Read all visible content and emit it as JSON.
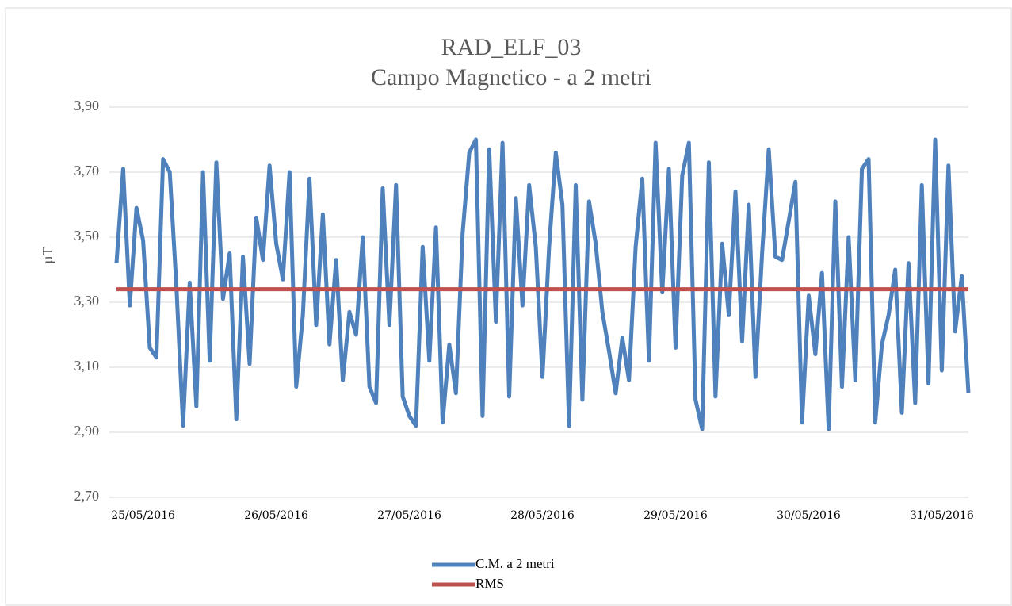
{
  "chart_data": {
    "type": "line",
    "title": "RAD_ELF_03",
    "subtitle": "Campo Magnetico - a 2 metri",
    "y_label": "µT",
    "categories": [
      null,
      null,
      null,
      null,
      "25/05/2016",
      null,
      null,
      null,
      null,
      null,
      null,
      null,
      null,
      null,
      null,
      null,
      null,
      null,
      null,
      null,
      null,
      null,
      null,
      null,
      "26/05/2016",
      null,
      null,
      null,
      null,
      null,
      null,
      null,
      null,
      null,
      null,
      null,
      null,
      null,
      null,
      null,
      null,
      null,
      null,
      null,
      "27/05/2016",
      null,
      null,
      null,
      null,
      null,
      null,
      null,
      null,
      null,
      null,
      null,
      null,
      null,
      null,
      null,
      null,
      null,
      null,
      null,
      "28/05/2016",
      null,
      null,
      null,
      null,
      null,
      null,
      null,
      null,
      null,
      null,
      null,
      null,
      null,
      null,
      null,
      null,
      null,
      null,
      null,
      "29/05/2016",
      null,
      null,
      null,
      null,
      null,
      null,
      null,
      null,
      null,
      null,
      null,
      null,
      null,
      null,
      null,
      null,
      null,
      null,
      null,
      "30/05/2016",
      null,
      null,
      null,
      null,
      null,
      null,
      null,
      null,
      null,
      null,
      null,
      null,
      null,
      null,
      null,
      null,
      null,
      null,
      null,
      "31/05/2016",
      null,
      null,
      null,
      null
    ],
    "series": [
      {
        "name": "C.M. a 2 metri",
        "color": "#4f81bd",
        "values": [
          3.42,
          3.71,
          3.29,
          3.59,
          3.49,
          3.16,
          3.13,
          3.74,
          3.7,
          3.35,
          2.92,
          3.36,
          2.98,
          3.7,
          3.12,
          3.73,
          3.31,
          3.45,
          2.94,
          3.44,
          3.11,
          3.56,
          3.43,
          3.72,
          3.48,
          3.37,
          3.7,
          3.04,
          3.26,
          3.68,
          3.23,
          3.57,
          3.17,
          3.43,
          3.06,
          3.27,
          3.2,
          3.5,
          3.04,
          2.99,
          3.65,
          3.23,
          3.66,
          3.01,
          2.95,
          2.92,
          3.47,
          3.12,
          3.53,
          2.93,
          3.17,
          3.02,
          3.51,
          3.76,
          3.8,
          2.95,
          3.77,
          3.24,
          3.79,
          3.01,
          3.62,
          3.29,
          3.66,
          3.47,
          3.07,
          3.47,
          3.76,
          3.6,
          2.92,
          3.66,
          3.0,
          3.61,
          3.48,
          3.27,
          3.15,
          3.02,
          3.19,
          3.06,
          3.47,
          3.68,
          3.12,
          3.79,
          3.33,
          3.71,
          3.16,
          3.69,
          3.79,
          3.0,
          2.91,
          3.73,
          3.01,
          3.48,
          3.26,
          3.64,
          3.18,
          3.6,
          3.07,
          3.45,
          3.77,
          3.44,
          3.43,
          3.55,
          3.67,
          2.93,
          3.32,
          3.14,
          3.39,
          2.91,
          3.61,
          3.04,
          3.5,
          3.06,
          3.71,
          3.74,
          2.93,
          3.17,
          3.26,
          3.4,
          2.96,
          3.42,
          2.99,
          3.66,
          3.05,
          3.8,
          3.09,
          3.72,
          3.21,
          3.38,
          3.02
        ]
      },
      {
        "name": "RMS",
        "color": "#c0504d",
        "values": [
          3.34,
          3.34,
          3.34,
          3.34,
          3.34,
          3.34,
          3.34,
          3.34,
          3.34,
          3.34,
          3.34,
          3.34,
          3.34,
          3.34,
          3.34,
          3.34,
          3.34,
          3.34,
          3.34,
          3.34,
          3.34,
          3.34,
          3.34,
          3.34,
          3.34,
          3.34,
          3.34,
          3.34,
          3.34,
          3.34,
          3.34,
          3.34,
          3.34,
          3.34,
          3.34,
          3.34,
          3.34,
          3.34,
          3.34,
          3.34,
          3.34,
          3.34,
          3.34,
          3.34,
          3.34,
          3.34,
          3.34,
          3.34,
          3.34,
          3.34,
          3.34,
          3.34,
          3.34,
          3.34,
          3.34,
          3.34,
          3.34,
          3.34,
          3.34,
          3.34,
          3.34,
          3.34,
          3.34,
          3.34,
          3.34,
          3.34,
          3.34,
          3.34,
          3.34,
          3.34,
          3.34,
          3.34,
          3.34,
          3.34,
          3.34,
          3.34,
          3.34,
          3.34,
          3.34,
          3.34,
          3.34,
          3.34,
          3.34,
          3.34,
          3.34,
          3.34,
          3.34,
          3.34,
          3.34,
          3.34,
          3.34,
          3.34,
          3.34,
          3.34,
          3.34,
          3.34,
          3.34,
          3.34,
          3.34,
          3.34,
          3.34,
          3.34,
          3.34,
          3.34,
          3.34,
          3.34,
          3.34,
          3.34,
          3.34,
          3.34,
          3.34,
          3.34,
          3.34,
          3.34,
          3.34,
          3.34,
          3.34,
          3.34,
          3.34,
          3.34,
          3.34,
          3.34,
          3.34,
          3.34,
          3.34,
          3.34,
          3.34,
          3.34,
          3.34
        ]
      }
    ],
    "ylim": [
      2.7,
      3.9
    ],
    "yticks": [
      {
        "value": 2.7,
        "label": "2,70"
      },
      {
        "value": 2.9,
        "label": "2,90"
      },
      {
        "value": 3.1,
        "label": "3,10"
      },
      {
        "value": 3.3,
        "label": "3,30"
      },
      {
        "value": 3.5,
        "label": "3,50"
      },
      {
        "value": 3.7,
        "label": "3,70"
      },
      {
        "value": 3.9,
        "label": "3,90"
      }
    ],
    "grid": true
  }
}
